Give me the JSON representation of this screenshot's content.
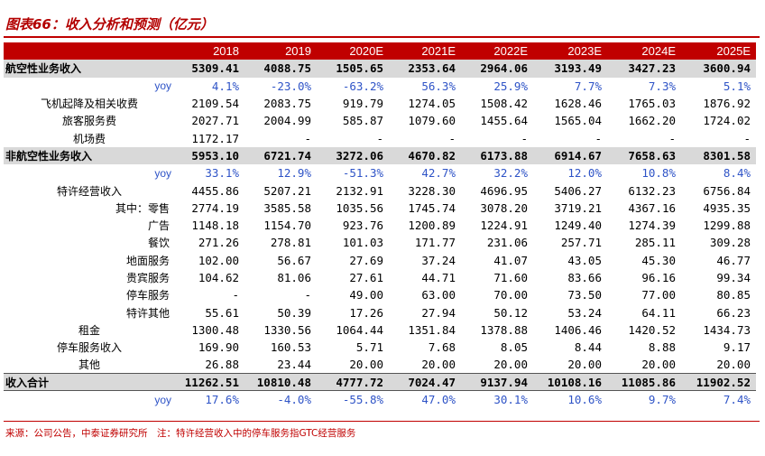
{
  "title": "图表66：收入分析和预测（亿元）",
  "header": {
    "label": "",
    "years": [
      "2018",
      "2019",
      "2020E",
      "2021E",
      "2022E",
      "2023E",
      "2024E",
      "2025E"
    ]
  },
  "rows": [
    {
      "label": "航空性业务收入",
      "kind": "major",
      "values": [
        "5309.41",
        "4088.75",
        "1505.65",
        "2353.64",
        "2964.06",
        "3193.49",
        "3427.23",
        "3600.94"
      ]
    },
    {
      "label": "yoy",
      "kind": "yoy",
      "values": [
        "4.1%",
        "-23.0%",
        "-63.2%",
        "56.3%",
        "25.9%",
        "7.7%",
        "7.3%",
        "5.1%"
      ]
    },
    {
      "label": "飞机起降及相关收费",
      "kind": "sub",
      "values": [
        "2109.54",
        "2083.75",
        "919.79",
        "1274.05",
        "1508.42",
        "1628.46",
        "1765.03",
        "1876.92"
      ]
    },
    {
      "label": "旅客服务费",
      "kind": "sub",
      "values": [
        "2027.71",
        "2004.99",
        "585.87",
        "1079.60",
        "1455.64",
        "1565.04",
        "1662.20",
        "1724.02"
      ]
    },
    {
      "label": "机场费",
      "kind": "sub",
      "values": [
        "1172.17",
        "-",
        "-",
        "-",
        "-",
        "-",
        "-",
        "-"
      ]
    },
    {
      "label": "非航空性业务收入",
      "kind": "major",
      "values": [
        "5953.10",
        "6721.74",
        "3272.06",
        "4670.82",
        "6173.88",
        "6914.67",
        "7658.63",
        "8301.58"
      ]
    },
    {
      "label": "yoy",
      "kind": "yoy",
      "values": [
        "33.1%",
        "12.9%",
        "-51.3%",
        "42.7%",
        "32.2%",
        "12.0%",
        "10.8%",
        "8.4%"
      ]
    },
    {
      "label": "特许经营收入",
      "kind": "sub",
      "values": [
        "4455.86",
        "5207.21",
        "2132.91",
        "3228.30",
        "4696.95",
        "5406.27",
        "6132.23",
        "6756.84"
      ]
    },
    {
      "label": "其中：零售",
      "kind": "subright",
      "values": [
        "2774.19",
        "3585.58",
        "1035.56",
        "1745.74",
        "3078.20",
        "3719.21",
        "4367.16",
        "4935.35"
      ]
    },
    {
      "label": "广告",
      "kind": "subright",
      "values": [
        "1148.18",
        "1154.70",
        "923.76",
        "1200.89",
        "1224.91",
        "1249.40",
        "1274.39",
        "1299.88"
      ]
    },
    {
      "label": "餐饮",
      "kind": "subright",
      "values": [
        "271.26",
        "278.81",
        "101.03",
        "171.77",
        "231.06",
        "257.71",
        "285.11",
        "309.28"
      ]
    },
    {
      "label": "地面服务",
      "kind": "subright",
      "values": [
        "102.00",
        "56.67",
        "27.69",
        "37.24",
        "41.07",
        "43.05",
        "45.30",
        "46.77"
      ]
    },
    {
      "label": "贵宾服务",
      "kind": "subright",
      "values": [
        "104.62",
        "81.06",
        "27.61",
        "44.71",
        "71.60",
        "83.66",
        "96.16",
        "99.34"
      ]
    },
    {
      "label": "停车服务",
      "kind": "subright",
      "values": [
        "-",
        "-",
        "49.00",
        "63.00",
        "70.00",
        "73.50",
        "77.00",
        "80.85"
      ]
    },
    {
      "label": "特许其他",
      "kind": "subright",
      "values": [
        "55.61",
        "50.39",
        "17.26",
        "27.94",
        "50.12",
        "53.24",
        "64.11",
        "66.23"
      ]
    },
    {
      "label": "租金",
      "kind": "sub",
      "values": [
        "1300.48",
        "1330.56",
        "1064.44",
        "1351.84",
        "1378.88",
        "1406.46",
        "1420.52",
        "1434.73"
      ]
    },
    {
      "label": "停车服务收入",
      "kind": "sub",
      "values": [
        "169.90",
        "160.53",
        "5.71",
        "7.68",
        "8.05",
        "8.44",
        "8.88",
        "9.17"
      ]
    },
    {
      "label": "其他",
      "kind": "sub",
      "values": [
        "26.88",
        "23.44",
        "20.00",
        "20.00",
        "20.00",
        "20.00",
        "20.00",
        "20.00"
      ]
    },
    {
      "label": "收入合计",
      "kind": "total",
      "values": [
        "11262.51",
        "10810.48",
        "4777.72",
        "7024.47",
        "9137.94",
        "10108.16",
        "11085.86",
        "11902.52"
      ]
    },
    {
      "label": "yoy",
      "kind": "yoy",
      "values": [
        "17.6%",
        "-4.0%",
        "-55.8%",
        "47.0%",
        "30.1%",
        "10.6%",
        "9.7%",
        "7.4%"
      ]
    }
  ],
  "source": "来源：公司公告，中泰证券研究所　注：特许经营收入中的停车服务指GTC经营服务",
  "colors": {
    "accent": "#c00000",
    "major_row_bg": "#d9d9d9",
    "yoy_text": "#2f54c7"
  }
}
